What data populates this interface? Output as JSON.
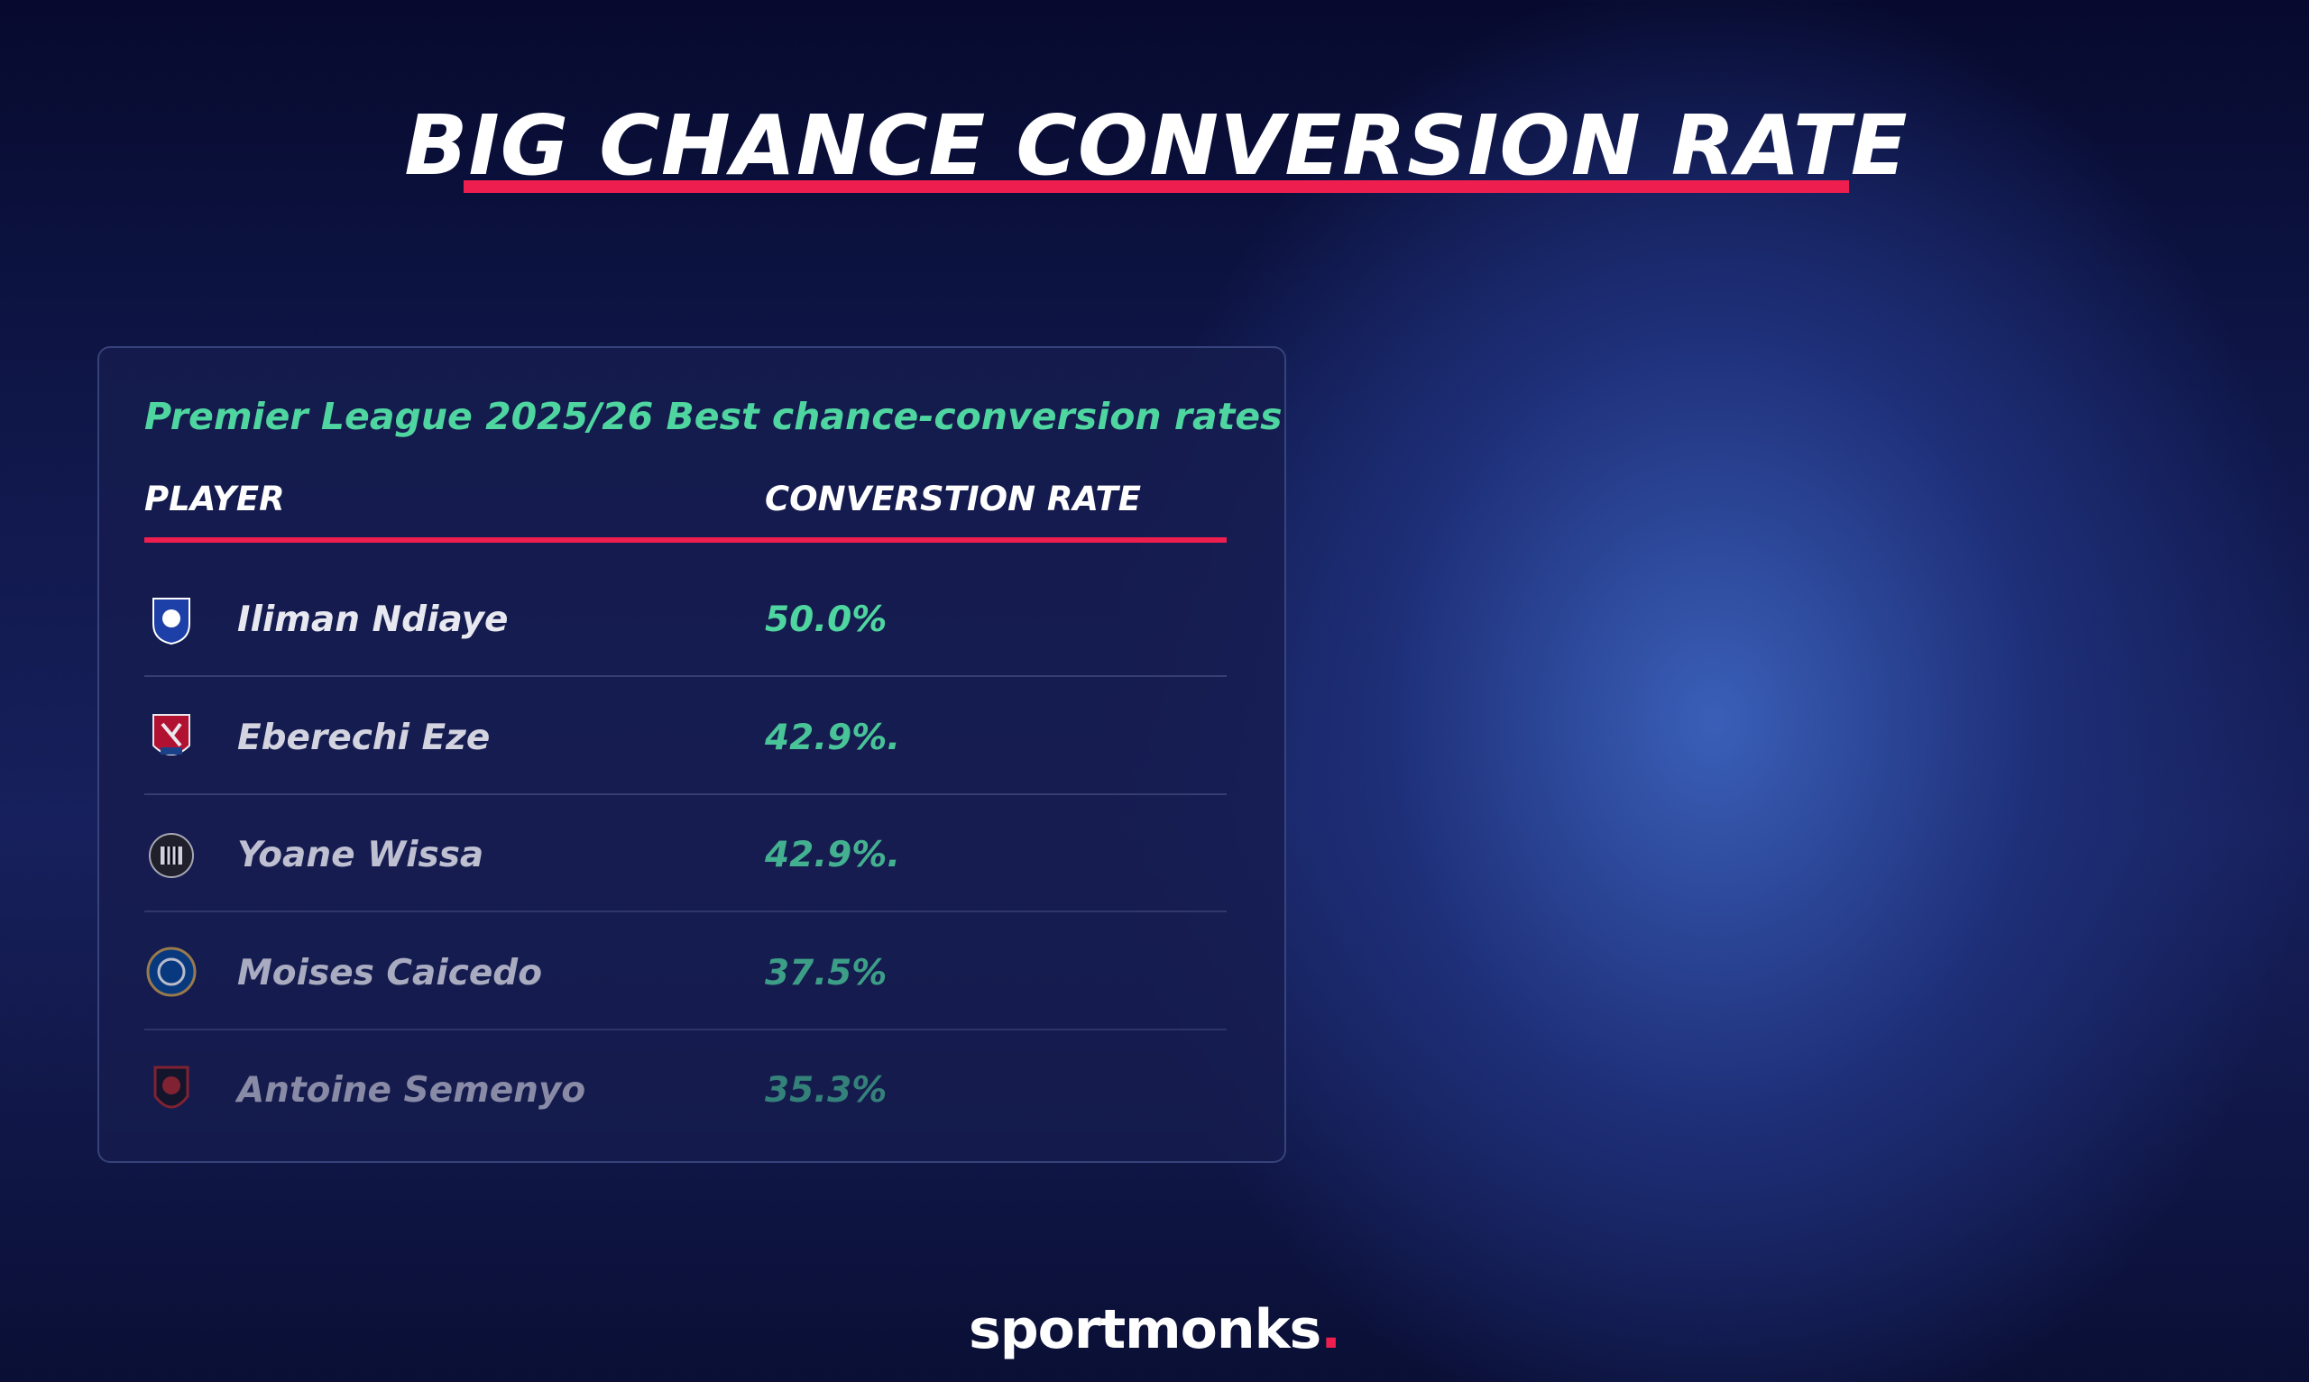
{
  "header": {
    "title": "BIG CHANCE CONVERSION RATE"
  },
  "table": {
    "subtitle": "Premier League 2025/26 Best chance-conversion rates",
    "columns": [
      "PLAYER",
      "CONVERSTION RATE"
    ],
    "rows": [
      [
        "Iliman Ndiaye",
        "50.0%"
      ],
      [
        "Eberechi Eze",
        "42.9%."
      ],
      [
        "Yoane Wissa",
        "42.9%."
      ],
      [
        "Moises Caicedo",
        "37.5%"
      ],
      [
        "Antoine Semenyo",
        "35.3%"
      ]
    ]
  },
  "brand": {
    "name": "sportmonks",
    "mark": "."
  }
}
